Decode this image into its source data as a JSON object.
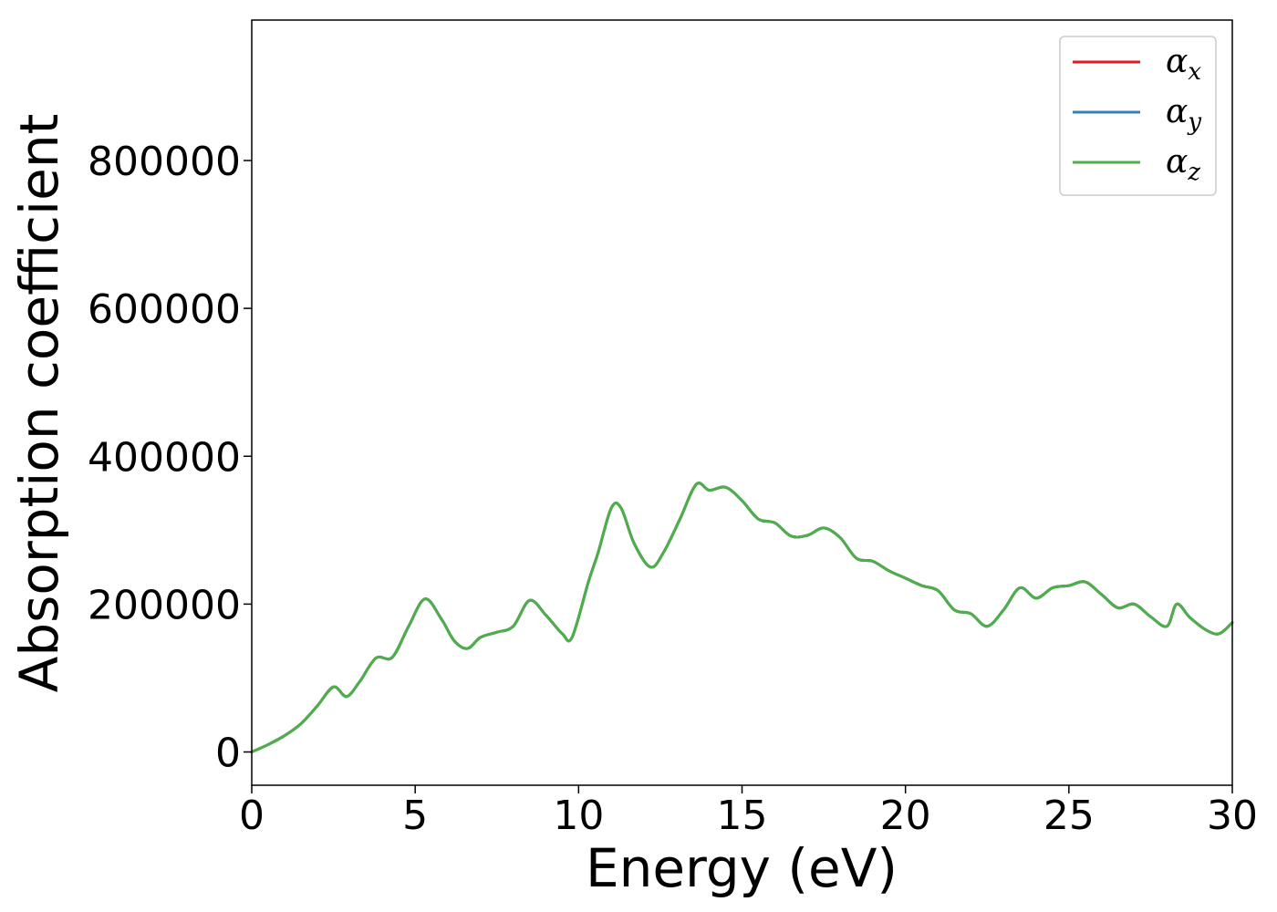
{
  "chart_data": {
    "type": "line",
    "title": "",
    "xlabel": "Energy (eV)",
    "ylabel": "Absorption coefficient",
    "xlim": [
      0,
      30
    ],
    "ylim": [
      -45000,
      990000
    ],
    "xticks": [
      0,
      5,
      10,
      15,
      20,
      25,
      30
    ],
    "xtick_labels": [
      "0",
      "5",
      "10",
      "15",
      "20",
      "25",
      "30"
    ],
    "yticks": [
      0,
      200000,
      400000,
      600000,
      800000
    ],
    "ytick_labels": [
      "0",
      "200000",
      "400000",
      "600000",
      "800000"
    ],
    "grid": false,
    "legend_position": "top-right",
    "x": [
      0,
      0.5,
      1.0,
      1.5,
      2.0,
      2.5,
      2.9,
      3.3,
      3.8,
      4.3,
      4.8,
      5.3,
      5.8,
      6.2,
      6.6,
      7.0,
      7.5,
      8.0,
      8.5,
      9.0,
      9.5,
      9.8,
      10.3,
      10.6,
      11.0,
      11.3,
      11.7,
      12.2,
      12.6,
      13.1,
      13.6,
      14.0,
      14.5,
      15.0,
      15.5,
      16.0,
      16.5,
      17.0,
      17.5,
      18.0,
      18.5,
      19.0,
      19.5,
      20.0,
      20.5,
      21.0,
      21.5,
      22.0,
      22.5,
      23.0,
      23.5,
      24.0,
      24.5,
      25.0,
      25.5,
      26.0,
      26.5,
      27.0,
      27.5,
      28.0,
      28.3,
      28.7,
      29.2,
      29.6,
      30.0
    ],
    "series": [
      {
        "name": "α_x",
        "color": "#e41a1c",
        "values": [
          0,
          10000,
          22000,
          38000,
          62000,
          88000,
          75000,
          95000,
          127000,
          128000,
          170000,
          207000,
          180000,
          150000,
          140000,
          155000,
          162000,
          170000,
          205000,
          185000,
          160000,
          155000,
          230000,
          270000,
          330000,
          330000,
          282000,
          250000,
          270000,
          315000,
          362000,
          354000,
          358000,
          340000,
          315000,
          310000,
          292000,
          293000,
          303000,
          290000,
          262000,
          258000,
          245000,
          235000,
          225000,
          218000,
          192000,
          187000,
          170000,
          192000,
          222000,
          208000,
          222000,
          225000,
          230000,
          213000,
          195000,
          200000,
          183000,
          170000,
          200000,
          182000,
          165000,
          160000,
          175000
        ]
      },
      {
        "name": "α_y",
        "color": "#377eb8",
        "values": [
          0,
          10000,
          22000,
          38000,
          62000,
          88000,
          75000,
          95000,
          127000,
          128000,
          170000,
          207000,
          180000,
          150000,
          140000,
          155000,
          162000,
          170000,
          205000,
          185000,
          160000,
          155000,
          230000,
          270000,
          330000,
          330000,
          282000,
          250000,
          270000,
          315000,
          362000,
          354000,
          358000,
          340000,
          315000,
          310000,
          292000,
          293000,
          303000,
          290000,
          262000,
          258000,
          245000,
          235000,
          225000,
          218000,
          192000,
          187000,
          170000,
          192000,
          222000,
          208000,
          222000,
          225000,
          230000,
          213000,
          195000,
          200000,
          183000,
          170000,
          200000,
          182000,
          165000,
          160000,
          175000
        ]
      },
      {
        "name": "α_z",
        "color": "#4daf4a",
        "values": [
          0,
          10000,
          22000,
          38000,
          62000,
          88000,
          75000,
          95000,
          127000,
          128000,
          170000,
          207000,
          180000,
          150000,
          140000,
          155000,
          162000,
          170000,
          205000,
          185000,
          160000,
          155000,
          230000,
          270000,
          330000,
          330000,
          282000,
          250000,
          270000,
          315000,
          362000,
          354000,
          358000,
          340000,
          315000,
          310000,
          292000,
          293000,
          303000,
          290000,
          262000,
          258000,
          245000,
          235000,
          225000,
          218000,
          192000,
          187000,
          170000,
          192000,
          222000,
          208000,
          222000,
          225000,
          230000,
          213000,
          195000,
          200000,
          183000,
          170000,
          200000,
          182000,
          165000,
          160000,
          175000
        ]
      }
    ],
    "legend": [
      {
        "symbol": "α",
        "subscript": "x"
      },
      {
        "symbol": "α",
        "subscript": "y"
      },
      {
        "symbol": "α",
        "subscript": "z"
      }
    ]
  }
}
